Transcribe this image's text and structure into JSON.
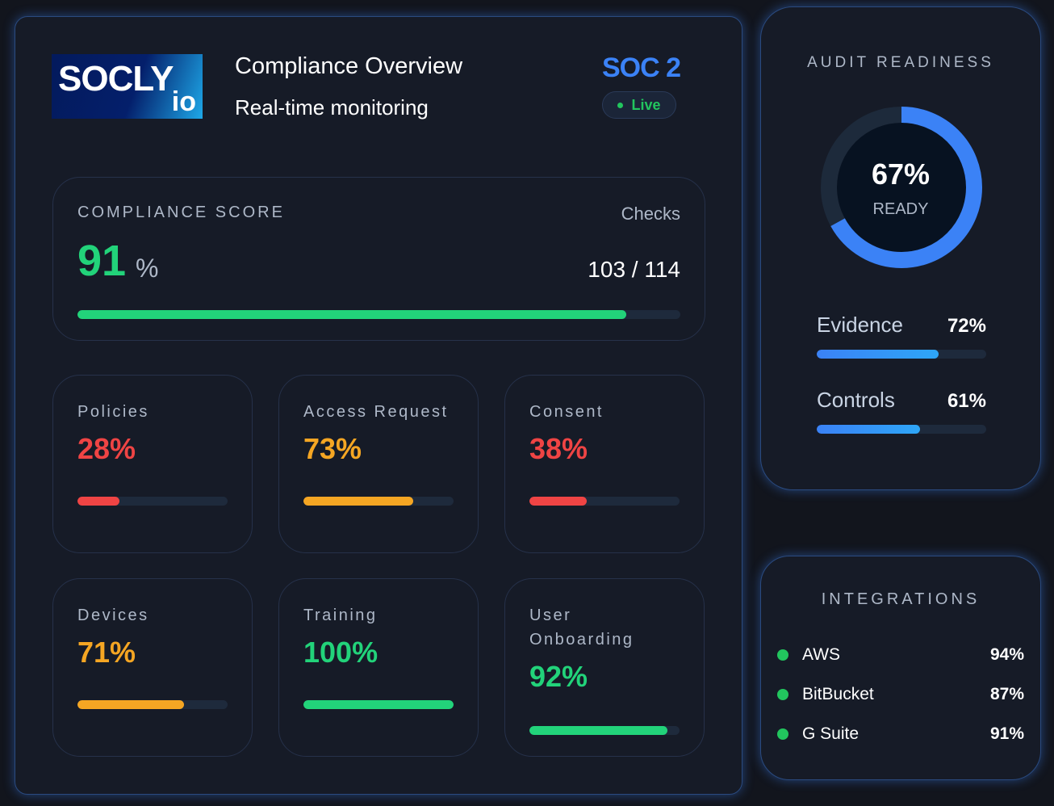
{
  "header": {
    "logo_text": "SOCLY.io",
    "title": "Compliance Overview",
    "subtitle": "Real-time monitoring",
    "framework": "SOC 2",
    "status": "Live"
  },
  "score": {
    "label": "COMPLIANCE SCORE",
    "value": "91",
    "unit": "%",
    "percent": 91,
    "checks_label": "Checks",
    "checks": "103 / 114",
    "color": "#22d37a"
  },
  "tiles": [
    {
      "label": "Policies",
      "value": "28%",
      "percent": 28,
      "color": "#ef4444"
    },
    {
      "label": "Access Request",
      "value": "73%",
      "percent": 73,
      "color": "#f5a623"
    },
    {
      "label": "Consent",
      "value": "38%",
      "percent": 38,
      "color": "#ef4444"
    },
    {
      "label": "Devices",
      "value": "71%",
      "percent": 71,
      "color": "#f5a623"
    },
    {
      "label": "Training",
      "value": "100%",
      "percent": 100,
      "color": "#22d37a"
    },
    {
      "label": "User Onboarding",
      "value": "92%",
      "percent": 92,
      "color": "#22d37a"
    }
  ],
  "audit": {
    "title": "AUDIT READINESS",
    "value": "67%",
    "percent": 67,
    "sublabel": "READY",
    "color": "#3b82f6",
    "metrics": [
      {
        "label": "Evidence",
        "value": "72%",
        "percent": 72
      },
      {
        "label": "Controls",
        "value": "61%",
        "percent": 61
      }
    ]
  },
  "integrations": {
    "title": "INTEGRATIONS",
    "items": [
      {
        "name": "AWS",
        "value": "94%"
      },
      {
        "name": "BitBucket",
        "value": "87%"
      },
      {
        "name": "G Suite",
        "value": "91%"
      }
    ],
    "color": "#22c55e"
  }
}
